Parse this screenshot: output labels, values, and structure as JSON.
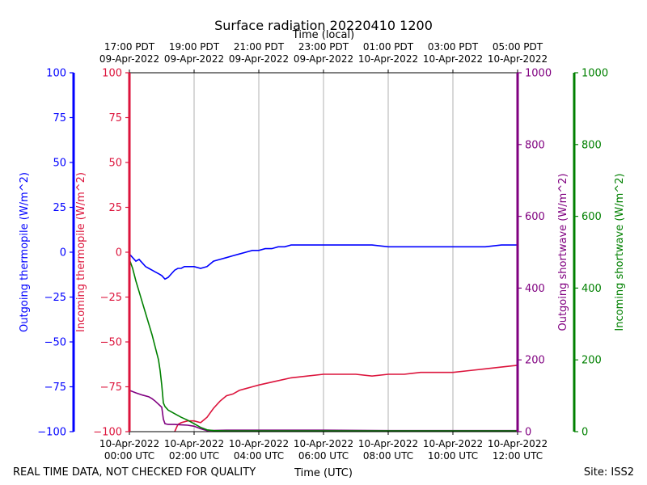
{
  "chart_data": {
    "type": "line",
    "title": "Surface radiation 20220410 1200",
    "top_xlabel": "Time (local)",
    "xlabel": "Time (UTC)",
    "footer_left": "REAL TIME DATA, NOT CHECKED FOR QUALITY",
    "footer_right": "Site: ISS2",
    "x_hours": [
      0,
      2,
      4,
      6,
      8,
      10,
      12
    ],
    "xlim": [
      0,
      12
    ],
    "grid_x": true,
    "grid_y": false,
    "bottom_ticks": [
      {
        "l1": "10-Apr-2022",
        "l2": "00:00 UTC"
      },
      {
        "l1": "10-Apr-2022",
        "l2": "02:00 UTC"
      },
      {
        "l1": "10-Apr-2022",
        "l2": "04:00 UTC"
      },
      {
        "l1": "10-Apr-2022",
        "l2": "06:00 UTC"
      },
      {
        "l1": "10-Apr-2022",
        "l2": "08:00 UTC"
      },
      {
        "l1": "10-Apr-2022",
        "l2": "10:00 UTC"
      },
      {
        "l1": "10-Apr-2022",
        "l2": "12:00 UTC"
      }
    ],
    "top_ticks": [
      {
        "l1": "17:00 PDT",
        "l2": "09-Apr-2022"
      },
      {
        "l1": "19:00 PDT",
        "l2": "09-Apr-2022"
      },
      {
        "l1": "21:00 PDT",
        "l2": "09-Apr-2022"
      },
      {
        "l1": "23:00 PDT",
        "l2": "09-Apr-2022"
      },
      {
        "l1": "01:00 PDT",
        "l2": "10-Apr-2022"
      },
      {
        "l1": "03:00 PDT",
        "l2": "10-Apr-2022"
      },
      {
        "l1": "05:00 PDT",
        "l2": "10-Apr-2022"
      }
    ],
    "axes": [
      {
        "id": "out_thermo",
        "label": "Outgoing thermopile (W/m^2)",
        "color": "#0000ff",
        "ylim": [
          -100,
          100
        ],
        "ticks": [
          100,
          75,
          50,
          25,
          0,
          -25,
          -50,
          -75,
          -100
        ],
        "tick_labels": [
          "100",
          "75",
          "50",
          "25",
          "0",
          "−25",
          "−50",
          "−75",
          "−100"
        ]
      },
      {
        "id": "in_thermo",
        "label": "Incoming thermopile (W/m^2)",
        "color": "#dc143c",
        "ylim": [
          -100,
          100
        ],
        "ticks": [
          100,
          75,
          50,
          25,
          0,
          -25,
          -50,
          -75,
          -100
        ],
        "tick_labels": [
          "100",
          "75",
          "50",
          "25",
          "0",
          "−25",
          "−50",
          "−75",
          "−100"
        ]
      },
      {
        "id": "out_sw",
        "label": "Outgoing shortwave (W/m^2)",
        "color": "#800080",
        "ylim": [
          0,
          1000
        ],
        "ticks": [
          1000,
          800,
          600,
          400,
          200,
          0
        ],
        "tick_labels": [
          "1000",
          "800",
          "600",
          "400",
          "200",
          "0"
        ]
      },
      {
        "id": "in_sw",
        "label": "Incoming shortwave (W/m^2)",
        "color": "#008000",
        "ylim": [
          0,
          1000
        ],
        "ticks": [
          1000,
          800,
          600,
          400,
          200,
          0
        ],
        "tick_labels": [
          "1000",
          "800",
          "600",
          "400",
          "200",
          "0"
        ]
      }
    ],
    "series": [
      {
        "axis": "out_thermo",
        "color": "#0000ff",
        "x": [
          0,
          0.1,
          0.2,
          0.3,
          0.4,
          0.5,
          0.6,
          0.7,
          0.8,
          0.9,
          1.0,
          1.1,
          1.2,
          1.3,
          1.4,
          1.5,
          1.6,
          1.7,
          1.8,
          1.9,
          2.0,
          2.2,
          2.4,
          2.6,
          2.8,
          3.0,
          3.2,
          3.4,
          3.6,
          3.8,
          4.0,
          4.2,
          4.4,
          4.6,
          4.8,
          5.0,
          5.5,
          6.0,
          6.5,
          7.0,
          7.5,
          8.0,
          8.5,
          9.0,
          9.5,
          10.0,
          10.5,
          11.0,
          11.5,
          12.0
        ],
        "y": [
          -1,
          -3,
          -5,
          -4,
          -6,
          -8,
          -9,
          -10,
          -11,
          -12,
          -13,
          -15,
          -14,
          -12,
          -10,
          -9,
          -9,
          -8,
          -8,
          -8,
          -8,
          -9,
          -8,
          -5,
          -4,
          -3,
          -2,
          -1,
          0,
          1,
          1,
          2,
          2,
          3,
          3,
          4,
          4,
          4,
          4,
          4,
          4,
          3,
          3,
          3,
          3,
          3,
          3,
          3,
          4,
          4
        ]
      },
      {
        "axis": "in_thermo",
        "color": "#dc143c",
        "x": [
          1.4,
          1.5,
          1.6,
          1.8,
          2.0,
          2.2,
          2.4,
          2.6,
          2.8,
          3.0,
          3.2,
          3.4,
          3.6,
          3.8,
          4.0,
          4.5,
          5.0,
          5.5,
          6.0,
          6.5,
          7.0,
          7.5,
          8.0,
          8.5,
          9.0,
          9.5,
          10.0,
          10.5,
          11.0,
          11.5,
          12.0
        ],
        "y": [
          -100,
          -96,
          -95,
          -94,
          -94,
          -95,
          -92,
          -87,
          -83,
          -80,
          -79,
          -77,
          -76,
          -75,
          -74,
          -72,
          -70,
          -69,
          -68,
          -68,
          -68,
          -69,
          -68,
          -68,
          -67,
          -67,
          -67,
          -66,
          -65,
          -64,
          -63
        ]
      },
      {
        "axis": "out_sw",
        "color": "#800080",
        "x": [
          0,
          0.2,
          0.4,
          0.6,
          0.7,
          0.8,
          1.0,
          1.05,
          1.1,
          1.2,
          1.4,
          1.6,
          1.8,
          2.0,
          2.2,
          2.4,
          3.0,
          4.0,
          6.0,
          8.0,
          10.0,
          12.0
        ],
        "y": [
          115,
          108,
          102,
          97,
          92,
          85,
          68,
          35,
          22,
          20,
          20,
          19,
          18,
          15,
          8,
          3,
          4,
          4,
          4,
          3,
          3,
          3
        ]
      },
      {
        "axis": "in_sw",
        "color": "#008000",
        "x": [
          0,
          0.1,
          0.2,
          0.3,
          0.4,
          0.5,
          0.6,
          0.7,
          0.8,
          0.9,
          0.95,
          1.0,
          1.05,
          1.1,
          1.2,
          1.4,
          1.6,
          1.8,
          2.0,
          2.2,
          2.4,
          2.6,
          3.0,
          4.0,
          6.0,
          8.0,
          10.0,
          12.0
        ],
        "y": [
          480,
          455,
          420,
          390,
          360,
          330,
          300,
          270,
          235,
          200,
          170,
          130,
          80,
          70,
          60,
          50,
          40,
          32,
          22,
          12,
          5,
          3,
          2,
          2,
          2,
          2,
          2,
          2
        ]
      }
    ]
  }
}
